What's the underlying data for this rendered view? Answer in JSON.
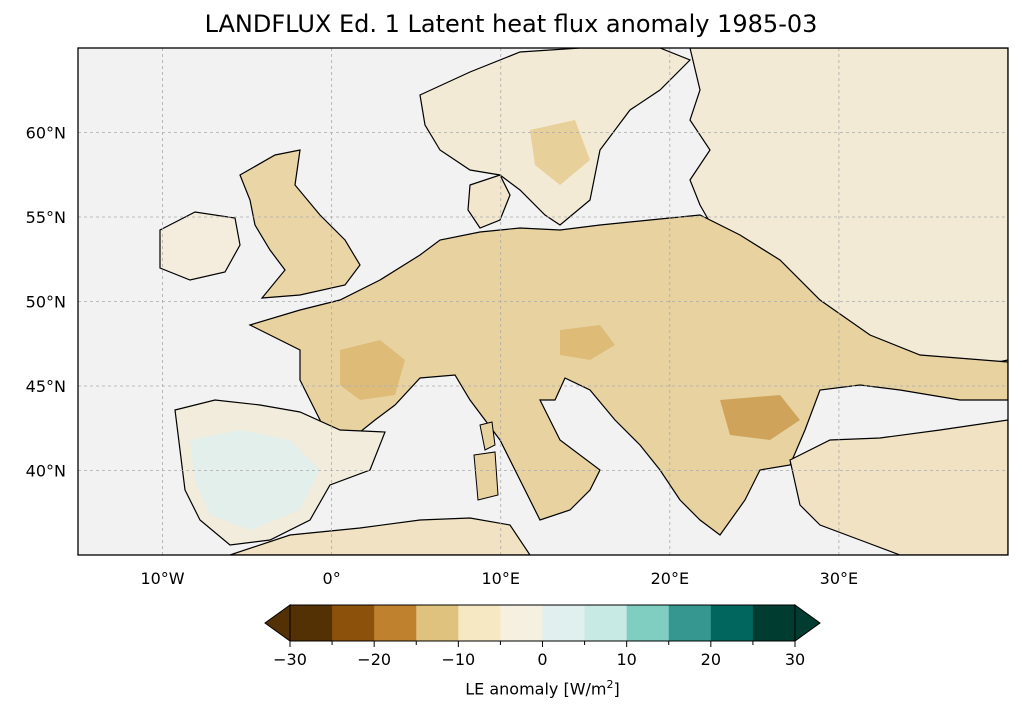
{
  "map": {
    "title": "LANDFLUX Ed. 1 Latent heat flux anomaly 1985-03",
    "lon_ticks": [
      {
        "value": -10,
        "label": "10°W"
      },
      {
        "value": 0,
        "label": "0°"
      },
      {
        "value": 10,
        "label": "10°E"
      },
      {
        "value": 20,
        "label": "20°E"
      },
      {
        "value": 30,
        "label": "30°E"
      }
    ],
    "lat_ticks": [
      {
        "value": 60,
        "label": "60°N"
      },
      {
        "value": 55,
        "label": "55°N"
      },
      {
        "value": 50,
        "label": "50°N"
      },
      {
        "value": 45,
        "label": "45°N"
      },
      {
        "value": 40,
        "label": "40°N"
      }
    ],
    "extent": {
      "lon": [
        -15,
        40
      ],
      "lat": [
        35,
        65
      ]
    },
    "ocean_color": "#f2f2f2",
    "gridlines": true
  },
  "colorbar": {
    "label_prefix": "LE anomaly [W/m",
    "label_sup": "2",
    "label_suffix": "]",
    "levels": [
      -30,
      -25,
      -20,
      -15,
      -10,
      -5,
      0,
      5,
      10,
      15,
      20,
      25,
      30
    ],
    "tick_values": [
      "−30",
      "−20",
      "−10",
      "0",
      "10",
      "20",
      "30"
    ],
    "colors": [
      "#543005",
      "#8c510a",
      "#bf812d",
      "#dfc27d",
      "#f6e8c3",
      "#f5f0e0",
      "#dff0ee",
      "#c7eae5",
      "#80cdc1",
      "#35978f",
      "#01665e",
      "#003c30"
    ],
    "extend_low_color": "#543005",
    "extend_high_color": "#003c30"
  }
}
